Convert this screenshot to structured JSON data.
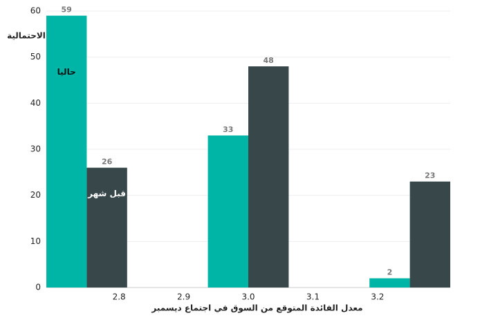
{
  "chart_data": {
    "type": "bar",
    "x_label": "معدل الفائدة المتوقع من السوق في اجتماع ديسمبر",
    "y_label": "الاحتمالية",
    "x": [
      2.75,
      3.0,
      3.25
    ],
    "series": [
      {
        "name": "حاليا",
        "color": "#00b5a6",
        "values": [
          59,
          33,
          2
        ]
      },
      {
        "name": "قبل شهر",
        "color": "#37474a",
        "values": [
          26,
          48,
          23
        ]
      }
    ],
    "xlim": [
      2.6875,
      3.3125
    ],
    "xticks": [
      2.8,
      2.9,
      {
        "value": 3,
        "label": "3.0"
      },
      3.1,
      3.2
    ],
    "ylim": [
      0,
      60
    ],
    "yticks": [
      0,
      10,
      20,
      30,
      40,
      50,
      60
    ],
    "grid": true
  }
}
